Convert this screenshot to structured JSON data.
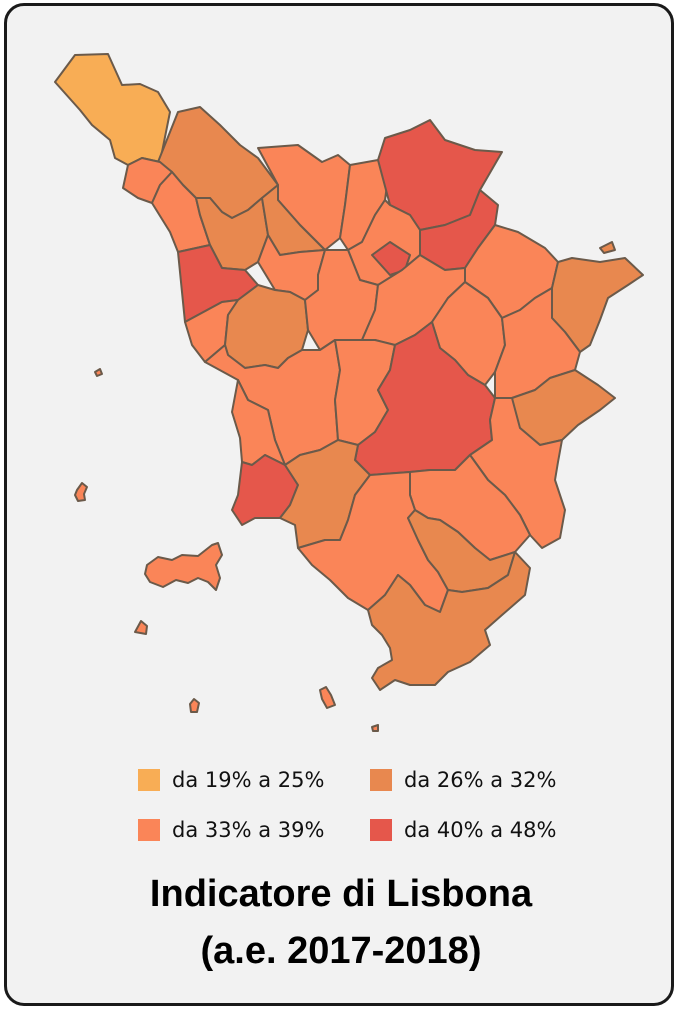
{
  "colors": {
    "c1": "#f8ad55",
    "c2": "#e8884f",
    "c3": "#fa8558",
    "c4": "#e5574b"
  },
  "legend": [
    {
      "label": "da 19% a 25%",
      "color": "#f8ad55"
    },
    {
      "label": "da 26% a 32%",
      "color": "#e8884f"
    },
    {
      "label": "da 33% a 39%",
      "color": "#fa8558"
    },
    {
      "label": "da 40% a 48%",
      "color": "#e5574b"
    }
  ],
  "title": {
    "line1": "Indicatore di Lisbona",
    "line2": "(a.e. 2017-2018)"
  }
}
